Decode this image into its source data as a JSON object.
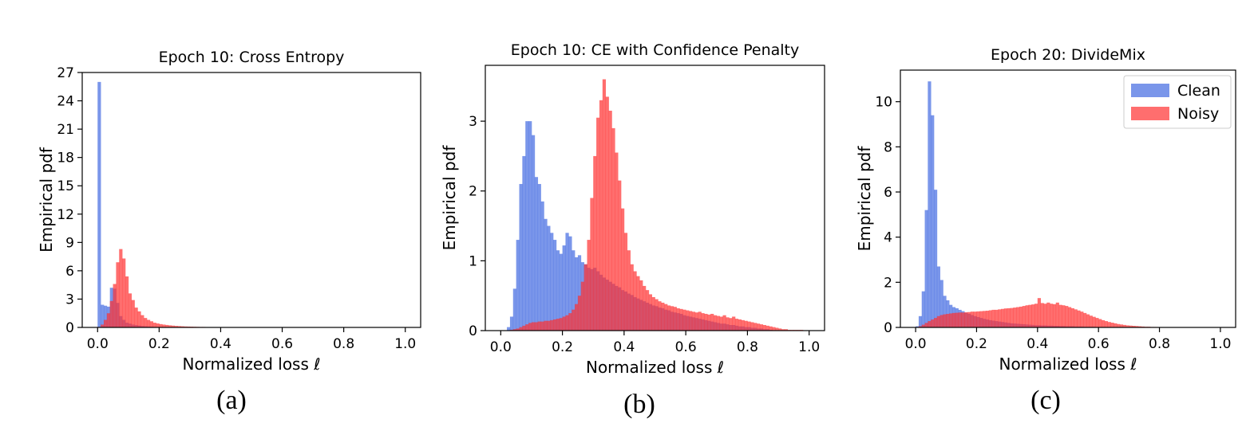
{
  "colors": {
    "clean": "#4169e1",
    "noisy": "#ff3030",
    "axis": "#000000"
  },
  "legend": {
    "labels": [
      "Clean",
      "Noisy"
    ],
    "placement": "top-right",
    "shown_in_panel": 2
  },
  "captions": [
    "(a)",
    "(b)",
    "(c)"
  ],
  "chart_data": [
    {
      "type": "histogram",
      "title": "Epoch 10: Cross Entropy",
      "xlabel": "Normalized loss ℓ",
      "ylabel": "Empirical pdf",
      "xlim": [
        -0.05,
        1.05
      ],
      "ylim": [
        0,
        27
      ],
      "xticks": [
        0.0,
        0.2,
        0.4,
        0.6,
        0.8,
        1.0
      ],
      "xtick_labels": [
        "0.0",
        "0.2",
        "0.4",
        "0.6",
        "0.8",
        "1.0"
      ],
      "yticks": [
        0,
        3,
        6,
        9,
        12,
        15,
        18,
        21,
        24,
        27
      ],
      "ytick_labels": [
        "0",
        "3",
        "6",
        "9",
        "12",
        "15",
        "18",
        "21",
        "24",
        "27"
      ],
      "grid": false,
      "bin_width": 0.01,
      "series": [
        {
          "name": "Clean",
          "bin_start": 0.0,
          "values": [
            26,
            2.4,
            2.3,
            2.2,
            4.2,
            4.1,
            2.6,
            1.2,
            0.8,
            0.5,
            0.4,
            0.3,
            0.25,
            0.2,
            0.15,
            0.12,
            0.1,
            0.08,
            0.06,
            0.05,
            0.04,
            0.03,
            0.02,
            0.02,
            0.01
          ]
        },
        {
          "name": "Noisy",
          "bin_start": 0.0,
          "values": [
            0.05,
            0.3,
            0.8,
            1.5,
            2.8,
            4.6,
            6.9,
            8.3,
            7.3,
            5.4,
            3.6,
            2.9,
            2.1,
            1.7,
            1.3,
            1.0,
            0.8,
            0.65,
            0.5,
            0.42,
            0.35,
            0.3,
            0.26,
            0.22,
            0.19,
            0.16,
            0.14,
            0.12,
            0.1,
            0.09,
            0.08,
            0.07,
            0.06,
            0.05,
            0.05,
            0.04,
            0.04,
            0.03,
            0.03,
            0.02,
            0.02,
            0.02,
            0.01,
            0.01,
            0.01
          ]
        }
      ]
    },
    {
      "type": "histogram",
      "title": "Epoch 10: CE with Confidence Penalty",
      "xlabel": "Normalized loss ℓ",
      "ylabel": "Empirical pdf",
      "xlim": [
        -0.05,
        1.05
      ],
      "ylim": [
        0,
        3.8
      ],
      "xticks": [
        0.0,
        0.2,
        0.4,
        0.6,
        0.8,
        1.0
      ],
      "xtick_labels": [
        "0.0",
        "0.2",
        "0.4",
        "0.6",
        "0.8",
        "1.0"
      ],
      "yticks": [
        0,
        1,
        2,
        3
      ],
      "ytick_labels": [
        "0",
        "1",
        "2",
        "3"
      ],
      "grid": false,
      "bin_width": 0.01,
      "series": [
        {
          "name": "Clean",
          "bin_start": 0.02,
          "values": [
            0.05,
            0.2,
            0.6,
            1.3,
            2.1,
            2.5,
            3.0,
            3.0,
            2.8,
            2.2,
            2.1,
            1.85,
            1.6,
            1.5,
            1.4,
            1.3,
            1.15,
            1.1,
            1.22,
            1.4,
            1.35,
            1.15,
            1.05,
            1.08,
            0.98,
            0.95,
            0.9,
            0.88,
            0.9,
            0.85,
            0.8,
            0.76,
            0.73,
            0.7,
            0.67,
            0.64,
            0.62,
            0.58,
            0.56,
            0.53,
            0.51,
            0.48,
            0.46,
            0.44,
            0.42,
            0.4,
            0.38,
            0.36,
            0.35,
            0.33,
            0.32,
            0.3,
            0.29,
            0.27,
            0.26,
            0.25,
            0.24,
            0.22,
            0.21,
            0.2,
            0.19,
            0.18,
            0.17,
            0.16,
            0.15,
            0.14,
            0.13,
            0.12,
            0.11,
            0.1,
            0.1,
            0.09,
            0.08,
            0.08,
            0.07,
            0.06,
            0.06,
            0.05,
            0.05,
            0.04,
            0.04,
            0.03,
            0.03,
            0.02,
            0.02,
            0.01
          ]
        },
        {
          "name": "Noisy",
          "bin_start": 0.02,
          "values": [
            0.0,
            0.01,
            0.02,
            0.03,
            0.05,
            0.07,
            0.09,
            0.11,
            0.12,
            0.12,
            0.13,
            0.13,
            0.14,
            0.14,
            0.15,
            0.16,
            0.17,
            0.18,
            0.2,
            0.22,
            0.25,
            0.3,
            0.38,
            0.5,
            0.7,
            0.95,
            1.3,
            1.9,
            2.5,
            3.05,
            3.3,
            3.6,
            3.35,
            3.15,
            2.9,
            2.55,
            2.15,
            1.75,
            1.4,
            1.15,
            0.95,
            0.85,
            0.78,
            0.72,
            0.64,
            0.58,
            0.52,
            0.48,
            0.45,
            0.42,
            0.4,
            0.38,
            0.36,
            0.35,
            0.34,
            0.32,
            0.31,
            0.3,
            0.29,
            0.28,
            0.27,
            0.26,
            0.27,
            0.25,
            0.24,
            0.23,
            0.24,
            0.22,
            0.21,
            0.2,
            0.22,
            0.19,
            0.18,
            0.2,
            0.17,
            0.16,
            0.15,
            0.14,
            0.13,
            0.12,
            0.11,
            0.1,
            0.09,
            0.08,
            0.07,
            0.06,
            0.05,
            0.04,
            0.03,
            0.02,
            0.02,
            0.01,
            0.01,
            0.01,
            0.01,
            0.01
          ]
        }
      ]
    },
    {
      "type": "histogram",
      "title": "Epoch 20: DivideMix",
      "xlabel": "Normalized loss ℓ",
      "ylabel": "Empirical pdf",
      "xlim": [
        -0.05,
        1.05
      ],
      "ylim": [
        0,
        11.4
      ],
      "xticks": [
        0.0,
        0.2,
        0.4,
        0.6,
        0.8,
        1.0
      ],
      "xtick_labels": [
        "0.0",
        "0.2",
        "0.4",
        "0.6",
        "0.8",
        "1.0"
      ],
      "yticks": [
        0,
        2,
        4,
        6,
        8,
        10
      ],
      "ytick_labels": [
        "0",
        "2",
        "4",
        "6",
        "8",
        "10"
      ],
      "grid": false,
      "bin_width": 0.01,
      "series": [
        {
          "name": "Clean",
          "bin_start": 0.0,
          "values": [
            0.05,
            0.5,
            1.6,
            5.2,
            10.9,
            9.4,
            6.1,
            2.7,
            2.1,
            1.4,
            1.2,
            1.0,
            0.9,
            0.85,
            0.78,
            0.72,
            0.65,
            0.6,
            0.55,
            0.5,
            0.46,
            0.42,
            0.38,
            0.35,
            0.32,
            0.3,
            0.28,
            0.26,
            0.24,
            0.22,
            0.2,
            0.18,
            0.17,
            0.16,
            0.15,
            0.14,
            0.13,
            0.12,
            0.11,
            0.1,
            0.1,
            0.09,
            0.09,
            0.08,
            0.08,
            0.07,
            0.07,
            0.06,
            0.06,
            0.05,
            0.05,
            0.05,
            0.04,
            0.04,
            0.04,
            0.03,
            0.03,
            0.03,
            0.03,
            0.02,
            0.02,
            0.02,
            0.02,
            0.02,
            0.01,
            0.01,
            0.01,
            0.01,
            0.01,
            0.01
          ]
        },
        {
          "name": "Noisy",
          "bin_start": 0.0,
          "values": [
            0.0,
            0.05,
            0.12,
            0.2,
            0.28,
            0.35,
            0.42,
            0.5,
            0.55,
            0.58,
            0.6,
            0.62,
            0.64,
            0.65,
            0.66,
            0.66,
            0.67,
            0.68,
            0.7,
            0.7,
            0.71,
            0.72,
            0.73,
            0.74,
            0.76,
            0.78,
            0.78,
            0.8,
            0.82,
            0.84,
            0.85,
            0.86,
            0.88,
            0.9,
            0.92,
            0.95,
            0.98,
            1.0,
            1.02,
            1.05,
            1.3,
            1.08,
            1.05,
            1.1,
            1.05,
            1.03,
            1.1,
            1.0,
            0.98,
            0.95,
            0.9,
            0.85,
            0.8,
            0.75,
            0.7,
            0.64,
            0.58,
            0.52,
            0.47,
            0.42,
            0.37,
            0.32,
            0.28,
            0.24,
            0.21,
            0.18,
            0.15,
            0.13,
            0.11,
            0.09,
            0.08,
            0.07,
            0.06,
            0.05,
            0.04,
            0.03,
            0.03,
            0.02,
            0.02,
            0.01,
            0.01
          ]
        }
      ]
    }
  ]
}
